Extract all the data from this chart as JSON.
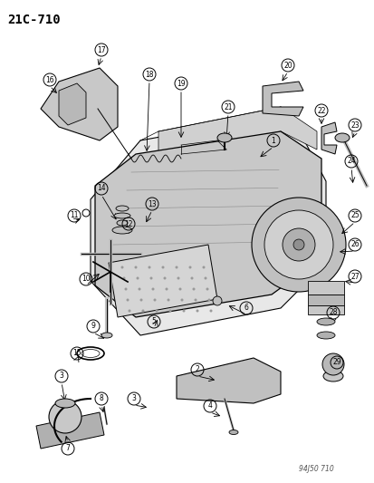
{
  "title": "21C-710",
  "subtitle": "94J50 710",
  "bg_color": "#ffffff",
  "fig_width": 4.14,
  "fig_height": 5.33,
  "dpi": 100
}
